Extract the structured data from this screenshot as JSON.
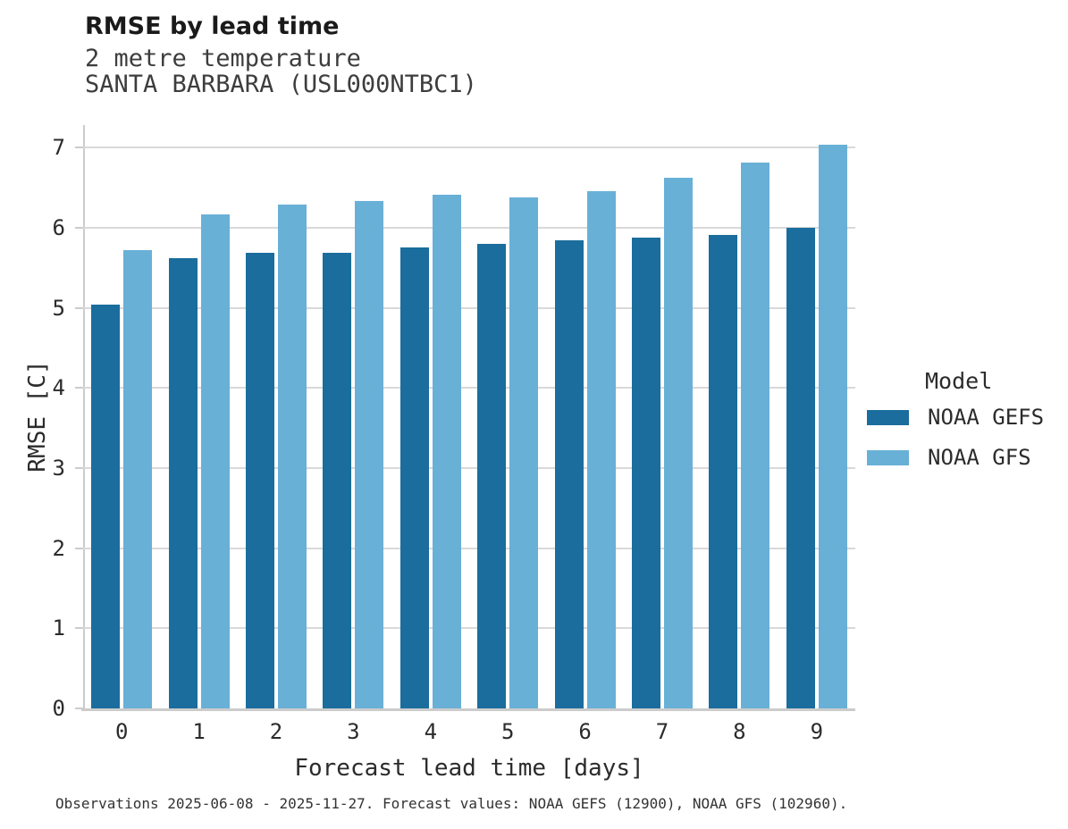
{
  "header": {
    "title": "RMSE by lead time",
    "subtitle_line1": "2 metre temperature",
    "subtitle_line2": "SANTA BARBARA (USL000NTBC1)"
  },
  "chart_data": {
    "type": "bar",
    "title": "RMSE by lead time",
    "subtitle": [
      "2 metre temperature",
      "SANTA BARBARA (USL000NTBC1)"
    ],
    "categories": [
      "0",
      "1",
      "2",
      "3",
      "4",
      "5",
      "6",
      "7",
      "8",
      "9"
    ],
    "series": [
      {
        "name": "NOAA GEFS",
        "color": "#1a6d9c",
        "values": [
          5.04,
          5.62,
          5.69,
          5.69,
          5.75,
          5.8,
          5.84,
          5.87,
          5.91,
          6.0
        ]
      },
      {
        "name": "NOAA GFS",
        "color": "#69b0d7",
        "values": [
          5.72,
          6.17,
          6.29,
          6.33,
          6.41,
          6.38,
          6.46,
          6.62,
          6.81,
          7.04
        ]
      }
    ],
    "xlabel": "Forecast lead time [days]",
    "ylabel": "RMSE [C]",
    "ylim": [
      0,
      7.28
    ],
    "yticks": [
      0,
      1,
      2,
      3,
      4,
      5,
      6,
      7
    ],
    "grid": true,
    "legend": {
      "title": "Model",
      "position": "right"
    },
    "colors": {
      "grid": "#d9d9d9",
      "spine": "#cccccc",
      "text": "#2b2b2b"
    }
  },
  "footnote": "Observations 2025-06-08 - 2025-11-27. Forecast values: NOAA GEFS (12900), NOAA GFS (102960)."
}
